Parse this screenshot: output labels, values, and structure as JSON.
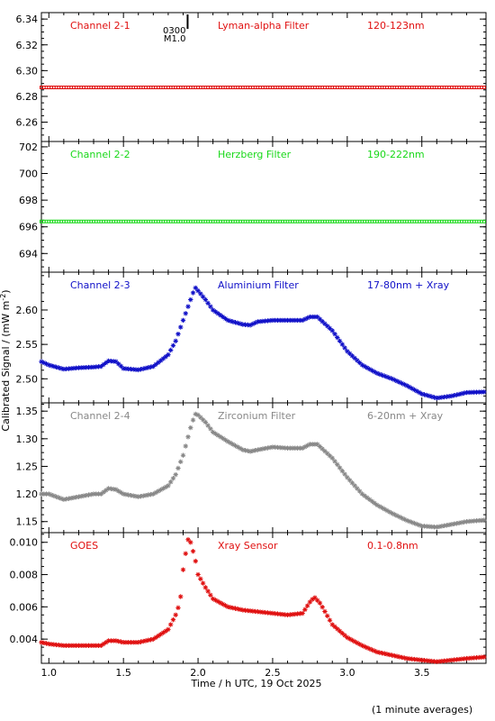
{
  "chart_data": {
    "type": "scatter",
    "x_range": [
      0.95,
      3.93
    ],
    "x_ticks": [
      "1.0",
      "1.5",
      "2.0",
      "2.5",
      "3.0",
      "3.5"
    ],
    "x_tick_values": [
      1.0,
      1.5,
      2.0,
      2.5,
      3.0,
      3.5
    ],
    "xlabel": "Time / h UTC, 19 Oct 2025",
    "ylabel": "Calibrated Signal / (mW m",
    "ylabel_sup": "-2",
    "ylabel_end": ")",
    "footnote": "(1 minute averages)",
    "marker": {
      "time_top": "0300",
      "time_bottom": "M1.0",
      "x": 1.93
    },
    "panels": [
      {
        "channel": "Channel 2-1",
        "filter": "Lyman-alpha Filter",
        "band": "120-123nm",
        "color": "#e01010",
        "ylim": [
          6.245,
          6.345
        ],
        "yticks": [
          6.26,
          6.28,
          6.3,
          6.32,
          6.34
        ],
        "ytick_labels": [
          "6.26",
          "6.28",
          "6.30",
          "6.32",
          "6.34"
        ],
        "points": [
          [
            0.95,
            6.287
          ],
          [
            3.93,
            6.287
          ]
        ]
      },
      {
        "channel": "Channel 2-2",
        "filter": "Herzberg Filter",
        "band": "190-222nm",
        "color": "#18d818",
        "ylim": [
          692.6,
          702.4
        ],
        "yticks": [
          694,
          696,
          698,
          700,
          702
        ],
        "ytick_labels": [
          "694",
          "696",
          "698",
          "700",
          "702"
        ],
        "points": [
          [
            0.95,
            696.4
          ],
          [
            3.93,
            696.4
          ]
        ]
      },
      {
        "channel": "Channel 2-3",
        "filter": "Aluminium Filter",
        "band": "17-80nm + Xray",
        "color": "#1010c8",
        "ylim": [
          2.465,
          2.655
        ],
        "yticks": [
          2.5,
          2.55,
          2.6
        ],
        "ytick_labels": [
          "2.50",
          "2.55",
          "2.60"
        ],
        "points": [
          [
            0.95,
            2.525
          ],
          [
            1.0,
            2.52
          ],
          [
            1.1,
            2.514
          ],
          [
            1.2,
            2.516
          ],
          [
            1.3,
            2.517
          ],
          [
            1.35,
            2.518
          ],
          [
            1.4,
            2.526
          ],
          [
            1.45,
            2.525
          ],
          [
            1.5,
            2.515
          ],
          [
            1.6,
            2.513
          ],
          [
            1.7,
            2.518
          ],
          [
            1.8,
            2.535
          ],
          [
            1.85,
            2.555
          ],
          [
            1.9,
            2.585
          ],
          [
            1.93,
            2.603
          ],
          [
            1.95,
            2.615
          ],
          [
            1.98,
            2.633
          ],
          [
            2.0,
            2.628
          ],
          [
            2.05,
            2.615
          ],
          [
            2.1,
            2.6
          ],
          [
            2.2,
            2.585
          ],
          [
            2.3,
            2.579
          ],
          [
            2.35,
            2.578
          ],
          [
            2.4,
            2.583
          ],
          [
            2.5,
            2.585
          ],
          [
            2.6,
            2.585
          ],
          [
            2.7,
            2.585
          ],
          [
            2.75,
            2.59
          ],
          [
            2.8,
            2.59
          ],
          [
            2.9,
            2.57
          ],
          [
            3.0,
            2.54
          ],
          [
            3.1,
            2.52
          ],
          [
            3.2,
            2.508
          ],
          [
            3.3,
            2.5
          ],
          [
            3.4,
            2.49
          ],
          [
            3.5,
            2.478
          ],
          [
            3.6,
            2.472
          ],
          [
            3.7,
            2.475
          ],
          [
            3.8,
            2.48
          ],
          [
            3.93,
            2.481
          ]
        ]
      },
      {
        "channel": "Channel 2-4",
        "filter": "Zirconium Filter",
        "band": "6-20nm + Xray",
        "color": "#888888",
        "ylim": [
          1.13,
          1.365
        ],
        "yticks": [
          1.15,
          1.2,
          1.25,
          1.3,
          1.35
        ],
        "ytick_labels": [
          "1.15",
          "1.20",
          "1.25",
          "1.30",
          "1.35"
        ],
        "points": [
          [
            0.95,
            1.2
          ],
          [
            1.0,
            1.2
          ],
          [
            1.1,
            1.19
          ],
          [
            1.2,
            1.195
          ],
          [
            1.3,
            1.2
          ],
          [
            1.35,
            1.2
          ],
          [
            1.4,
            1.21
          ],
          [
            1.45,
            1.208
          ],
          [
            1.5,
            1.2
          ],
          [
            1.6,
            1.195
          ],
          [
            1.7,
            1.2
          ],
          [
            1.8,
            1.215
          ],
          [
            1.85,
            1.235
          ],
          [
            1.9,
            1.27
          ],
          [
            1.93,
            1.3
          ],
          [
            1.95,
            1.32
          ],
          [
            1.98,
            1.345
          ],
          [
            2.0,
            1.343
          ],
          [
            2.05,
            1.33
          ],
          [
            2.1,
            1.312
          ],
          [
            2.2,
            1.295
          ],
          [
            2.3,
            1.28
          ],
          [
            2.35,
            1.277
          ],
          [
            2.4,
            1.28
          ],
          [
            2.5,
            1.285
          ],
          [
            2.6,
            1.283
          ],
          [
            2.7,
            1.283
          ],
          [
            2.75,
            1.29
          ],
          [
            2.8,
            1.29
          ],
          [
            2.9,
            1.265
          ],
          [
            3.0,
            1.23
          ],
          [
            3.1,
            1.2
          ],
          [
            3.2,
            1.18
          ],
          [
            3.3,
            1.165
          ],
          [
            3.4,
            1.152
          ],
          [
            3.5,
            1.142
          ],
          [
            3.6,
            1.14
          ],
          [
            3.7,
            1.145
          ],
          [
            3.8,
            1.15
          ],
          [
            3.93,
            1.153
          ]
        ]
      },
      {
        "channel": "GOES",
        "filter": "Xray Sensor",
        "band": "0.1-0.8nm",
        "color": "#e01010",
        "ylim": [
          0.0025,
          0.0106
        ],
        "yticks": [
          0.004,
          0.006,
          0.008,
          0.01
        ],
        "ytick_labels": [
          "0.004",
          "0.006",
          "0.008",
          "0.010"
        ],
        "points": [
          [
            0.95,
            0.0038
          ],
          [
            1.0,
            0.0037
          ],
          [
            1.1,
            0.0036
          ],
          [
            1.2,
            0.0036
          ],
          [
            1.3,
            0.0036
          ],
          [
            1.35,
            0.0036
          ],
          [
            1.4,
            0.0039
          ],
          [
            1.45,
            0.0039
          ],
          [
            1.5,
            0.0038
          ],
          [
            1.6,
            0.0038
          ],
          [
            1.7,
            0.004
          ],
          [
            1.8,
            0.0046
          ],
          [
            1.85,
            0.0055
          ],
          [
            1.88,
            0.0063
          ],
          [
            1.9,
            0.0083
          ],
          [
            1.92,
            0.0095
          ],
          [
            1.93,
            0.0102
          ],
          [
            1.95,
            0.01
          ],
          [
            1.98,
            0.009
          ],
          [
            2.0,
            0.008
          ],
          [
            2.05,
            0.0072
          ],
          [
            2.1,
            0.0065
          ],
          [
            2.2,
            0.006
          ],
          [
            2.3,
            0.0058
          ],
          [
            2.4,
            0.0057
          ],
          [
            2.5,
            0.0056
          ],
          [
            2.6,
            0.0055
          ],
          [
            2.7,
            0.0056
          ],
          [
            2.75,
            0.0063
          ],
          [
            2.78,
            0.0066
          ],
          [
            2.82,
            0.0062
          ],
          [
            2.9,
            0.0049
          ],
          [
            3.0,
            0.0041
          ],
          [
            3.1,
            0.0036
          ],
          [
            3.2,
            0.0032
          ],
          [
            3.3,
            0.003
          ],
          [
            3.4,
            0.0028
          ],
          [
            3.5,
            0.0027
          ],
          [
            3.6,
            0.0026
          ],
          [
            3.7,
            0.0027
          ],
          [
            3.8,
            0.0028
          ],
          [
            3.93,
            0.0029
          ]
        ]
      }
    ]
  }
}
